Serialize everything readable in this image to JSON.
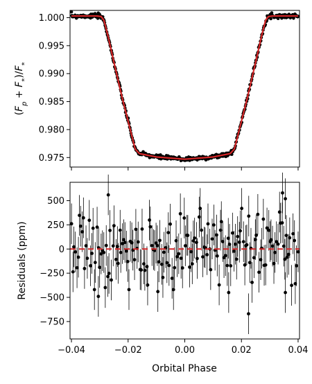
{
  "chart_data": [
    {
      "type": "scatter",
      "panel": "top",
      "xlabel": "",
      "ylabel": "(F_p + F_*)/F_*",
      "ylabel_parts": {
        "open": "(",
        "f1": "F",
        "s1": "p",
        "plus": " + ",
        "f2": "F",
        "s2": "*",
        "mid": ")/",
        "f3": "F",
        "s3": "*"
      },
      "xlim": [
        -0.0405,
        0.0405
      ],
      "ylim": [
        0.9733,
        1.0013
      ],
      "xticks": [
        -0.04,
        -0.02,
        0.0,
        0.02,
        0.04
      ],
      "yticks": [
        0.975,
        0.98,
        0.985,
        0.99,
        0.995,
        1.0
      ],
      "ytick_labels": [
        "0.975",
        "0.980",
        "0.985",
        "0.990",
        "0.995",
        "1.000"
      ],
      "x_tick_labels_visible": false,
      "model": {
        "name": "",
        "color": "#d62728",
        "x": [
          -0.04,
          -0.031,
          -0.0295,
          -0.0285,
          -0.027,
          -0.025,
          -0.022,
          -0.019,
          -0.0175,
          -0.016,
          -0.01,
          0.0,
          0.01,
          0.016,
          0.0175,
          0.019,
          0.022,
          0.025,
          0.027,
          0.0285,
          0.0295,
          0.031,
          0.04
        ],
        "y": [
          1.0003,
          1.0003,
          1.0002,
          0.9995,
          0.9965,
          0.992,
          0.9855,
          0.9795,
          0.9765,
          0.9757,
          0.9751,
          0.9747,
          0.9751,
          0.9757,
          0.9765,
          0.9795,
          0.9855,
          0.992,
          0.9965,
          0.9995,
          1.0002,
          1.0003,
          1.0003
        ]
      },
      "points": {
        "name": "",
        "color": "#000000",
        "count": 500,
        "ppm_scatter": 190
      }
    },
    {
      "type": "scatter",
      "panel": "bottom",
      "xlabel": "Orbital Phase",
      "ylabel": "Residuals (ppm)",
      "xlim": [
        -0.0405,
        0.0405
      ],
      "ylim": [
        -930,
        690
      ],
      "xticks": [
        -0.04,
        -0.02,
        0.0,
        0.02,
        0.04
      ],
      "xtick_labels": [
        "−0.04",
        "−0.02",
        "0.00",
        "0.02",
        "0.04"
      ],
      "yticks": [
        -750,
        -500,
        -250,
        0,
        250,
        500
      ],
      "ytick_labels": [
        "−750",
        "−500",
        "−250",
        "0",
        "250",
        "500"
      ],
      "zero_line": {
        "value": 0,
        "color": "#d62728",
        "style": "dashed"
      },
      "points": {
        "name": "",
        "color": "#000000",
        "count": 170,
        "std": 190,
        "error_bar": 210
      },
      "outliers": [
        {
          "x": 0.0225,
          "y": -670
        },
        {
          "x": -0.0095,
          "y": -440
        },
        {
          "x": 0.0155,
          "y": -450
        },
        {
          "x": 0.0355,
          "y": -450
        },
        {
          "x": -0.0305,
          "y": -490
        },
        {
          "x": -0.027,
          "y": 560
        },
        {
          "x": 0.0345,
          "y": 580
        },
        {
          "x": 0.0355,
          "y": 520
        }
      ]
    }
  ]
}
